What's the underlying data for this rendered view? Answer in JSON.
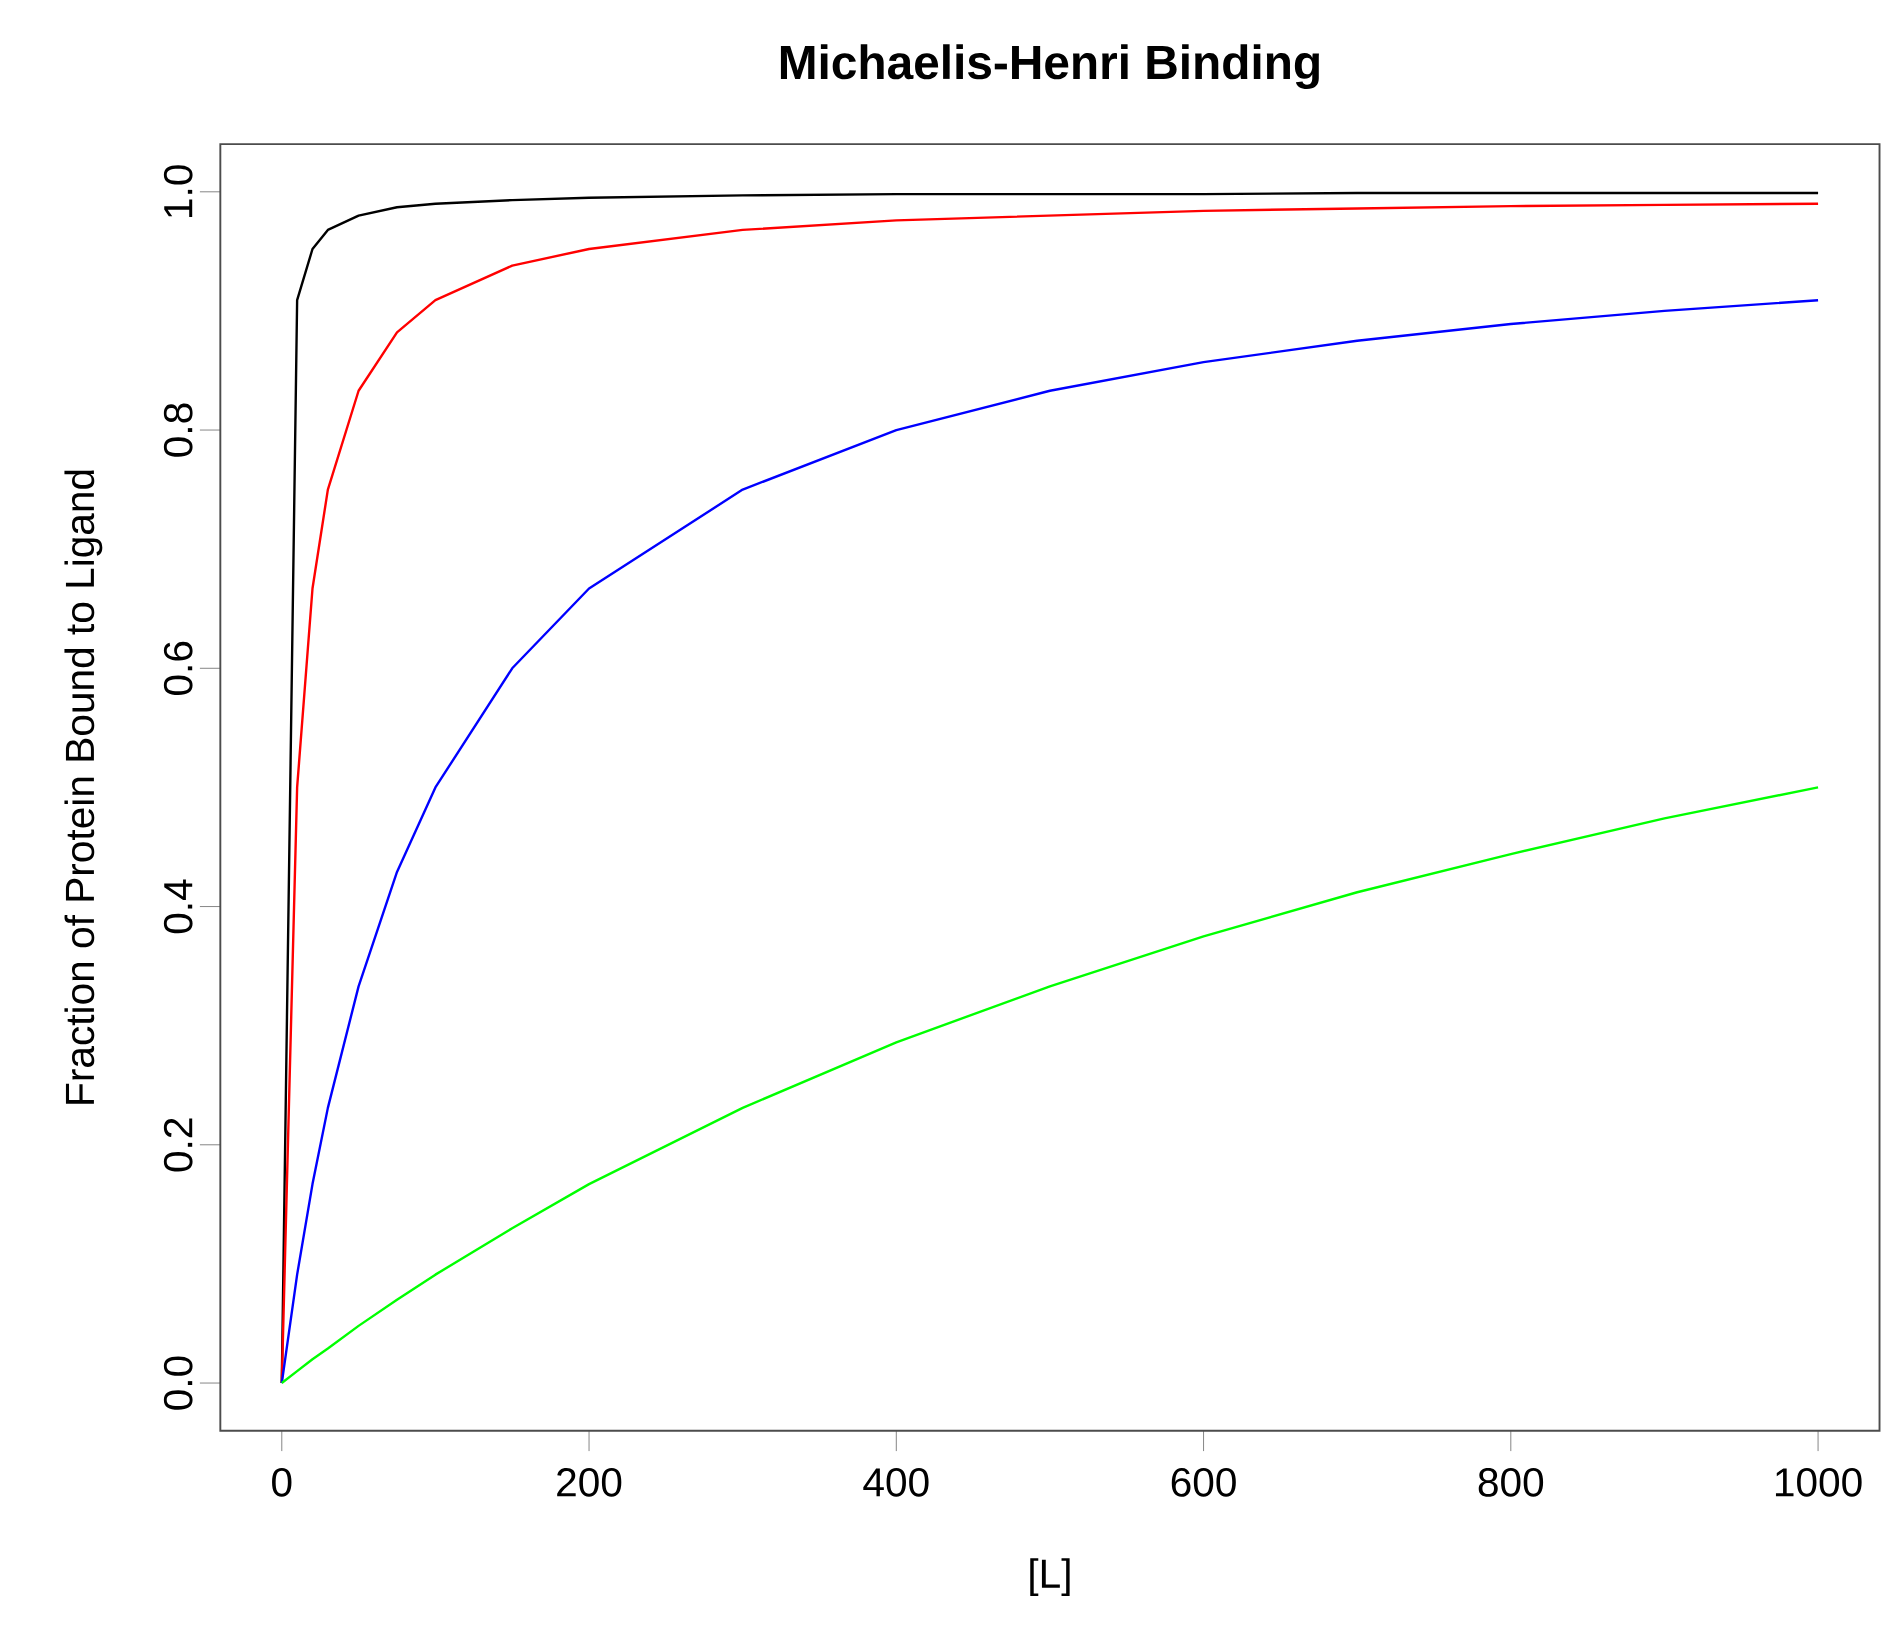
{
  "chart_data": {
    "type": "line",
    "title": "Michaelis-Henri Binding",
    "xlabel": "[L]",
    "ylabel": "Fraction of Protein Bound to Ligand",
    "x": [
      0,
      10,
      20,
      30,
      50,
      75,
      100,
      150,
      200,
      300,
      400,
      500,
      600,
      700,
      800,
      900,
      1000
    ],
    "series": [
      {
        "color": "#000000",
        "values": [
          0,
          0.909,
          0.952,
          0.968,
          0.98,
          0.987,
          0.99,
          0.993,
          0.995,
          0.997,
          0.998,
          0.998,
          0.998,
          0.999,
          0.999,
          0.999,
          0.999
        ]
      },
      {
        "color": "#ff0000",
        "values": [
          0,
          0.5,
          0.667,
          0.75,
          0.833,
          0.882,
          0.909,
          0.938,
          0.952,
          0.968,
          0.976,
          0.98,
          0.984,
          0.986,
          0.988,
          0.989,
          0.99
        ]
      },
      {
        "color": "#0000ff",
        "values": [
          0,
          0.091,
          0.167,
          0.231,
          0.333,
          0.429,
          0.5,
          0.6,
          0.667,
          0.75,
          0.8,
          0.833,
          0.857,
          0.875,
          0.889,
          0.9,
          0.909
        ]
      },
      {
        "color": "#00ff00",
        "values": [
          0,
          0.01,
          0.02,
          0.029,
          0.048,
          0.07,
          0.091,
          0.13,
          0.167,
          0.231,
          0.286,
          0.333,
          0.375,
          0.412,
          0.444,
          0.474,
          0.5
        ]
      }
    ],
    "xlim": [
      -40,
      1040
    ],
    "ylim": [
      -0.04,
      1.04
    ],
    "xticks": [
      0,
      200,
      400,
      600,
      800,
      1000
    ],
    "yticks": [
      {
        "value": 0,
        "label": "0.0"
      },
      {
        "value": 0.2,
        "label": "0.2"
      },
      {
        "value": 0.4,
        "label": "0.4"
      },
      {
        "value": 0.6,
        "label": "0.6"
      },
      {
        "value": 0.8,
        "label": "0.8"
      },
      {
        "value": 1.0,
        "label": "1.0"
      }
    ],
    "grid": false
  }
}
